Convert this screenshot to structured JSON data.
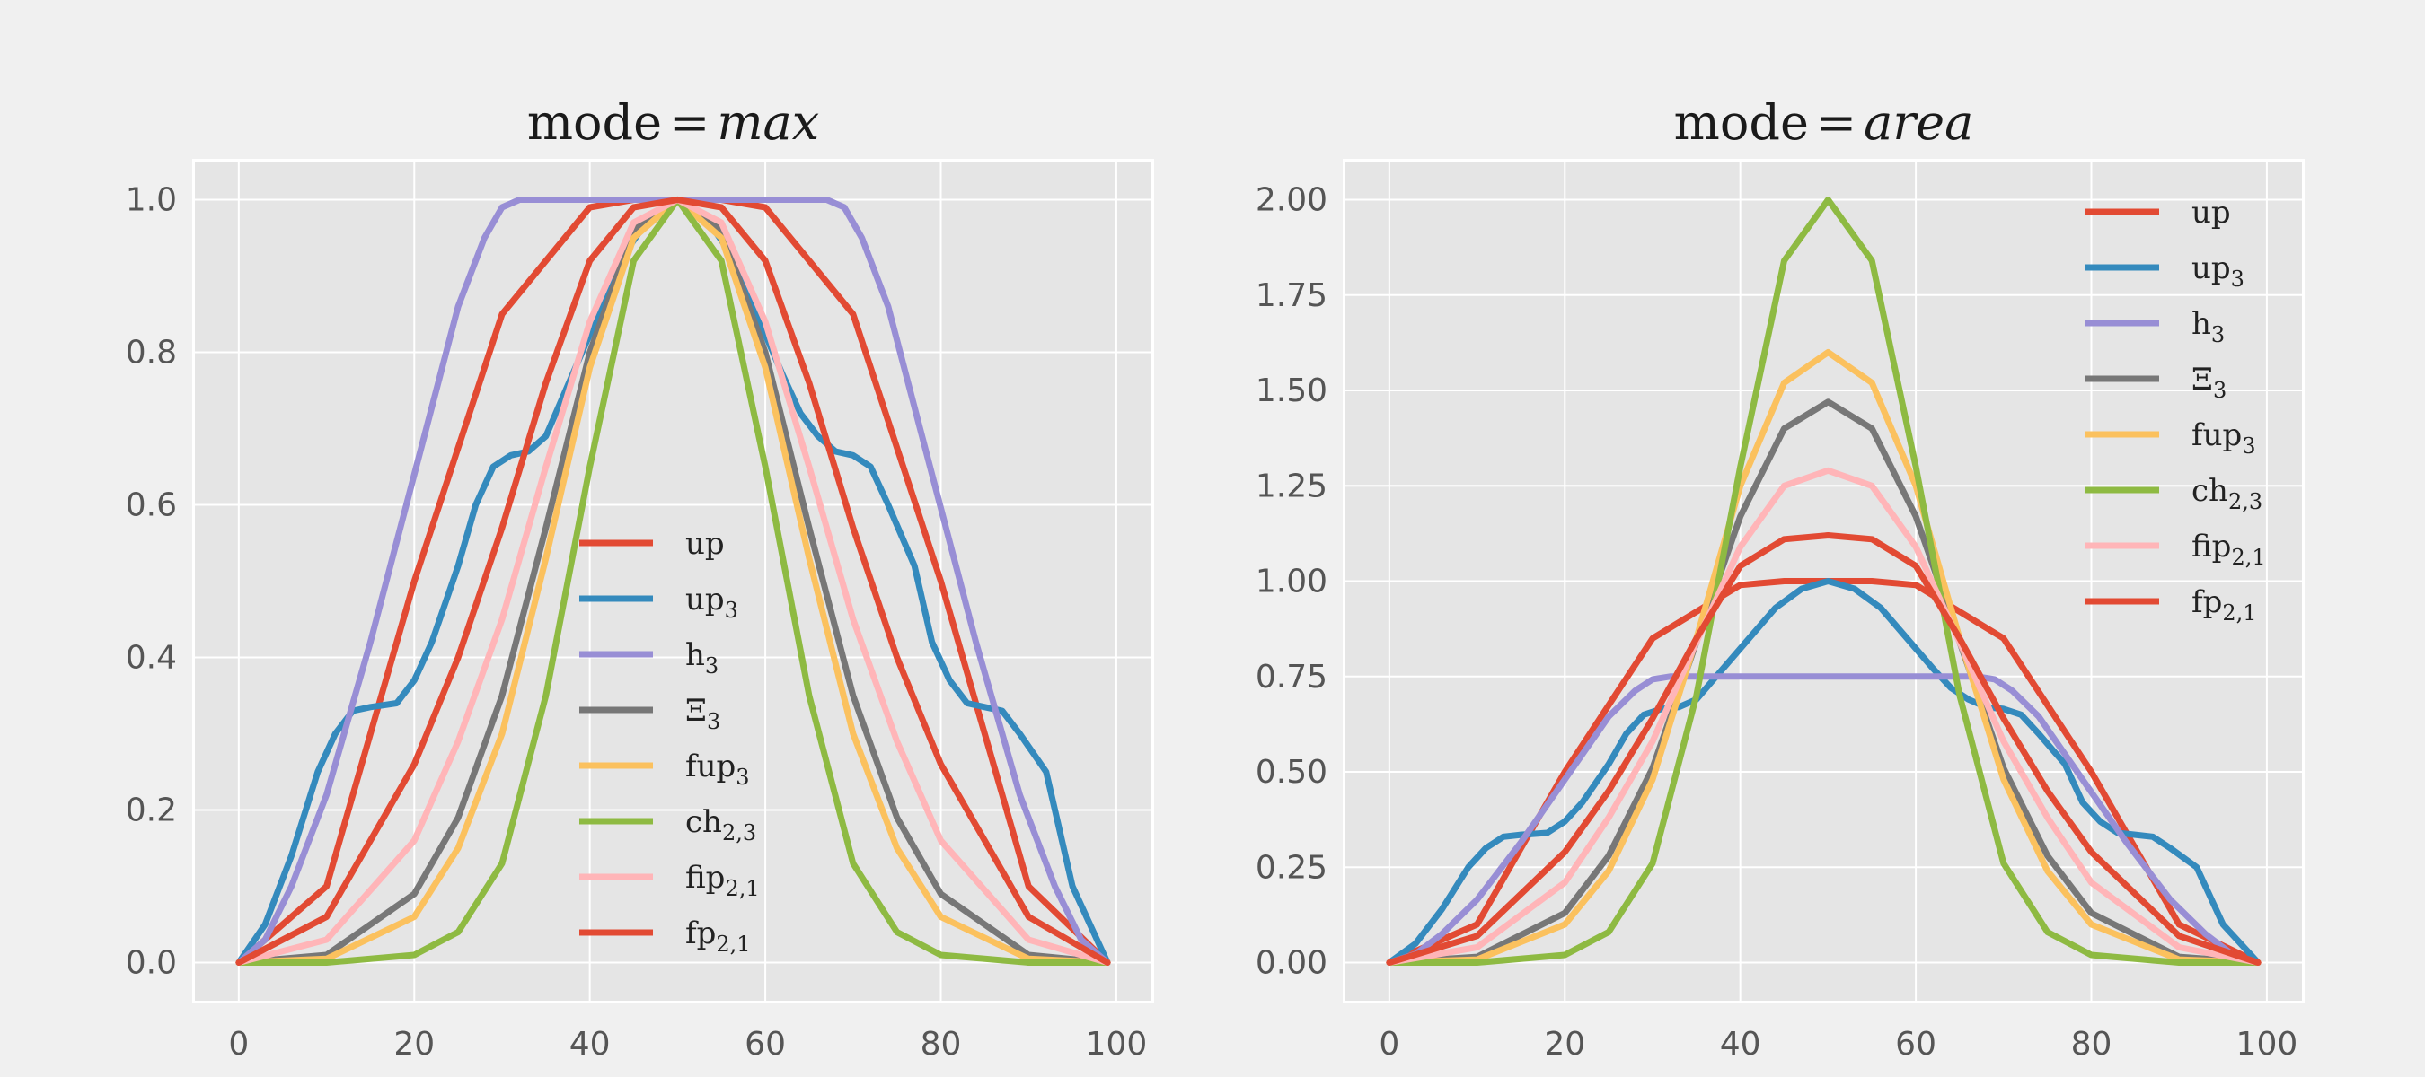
{
  "colors": {
    "up": "#e24a33",
    "up3": "#348abd",
    "h3": "#988ed5",
    "xi3": "#777777",
    "fup3": "#fbc15e",
    "ch23": "#8eba42",
    "fip21": "#ffb5b8",
    "fp21": "#e24a33"
  },
  "chart_data": [
    {
      "type": "line",
      "title": "mode = max",
      "title_main": "mode",
      "title_eq": "=",
      "title_var": "max",
      "xlim": [
        -5,
        104
      ],
      "ylim": [
        -0.05,
        1.05
      ],
      "xticks": [
        0,
        20,
        40,
        60,
        80,
        100
      ],
      "xtick_labels": [
        "0",
        "20",
        "40",
        "60",
        "80",
        "100"
      ],
      "yticks": [
        0.0,
        0.2,
        0.4,
        0.6,
        0.8,
        1.0
      ],
      "ytick_labels": [
        "0.0",
        "0.2",
        "0.4",
        "0.6",
        "0.8",
        "1.0"
      ],
      "grid": true,
      "legend_position": "lower-center",
      "series": [
        {
          "key": "up",
          "name": "up",
          "sub": "",
          "x": [
            0,
            10,
            20,
            30,
            40,
            45,
            50,
            55,
            60,
            70,
            80,
            90,
            99
          ],
          "y": [
            0.0,
            0.1,
            0.5,
            0.85,
            0.99,
            1.0,
            1.0,
            1.0,
            0.99,
            0.85,
            0.5,
            0.1,
            0.0
          ]
        },
        {
          "key": "up3",
          "name": "up",
          "sub": "3",
          "x": [
            0,
            3,
            6,
            9,
            11,
            13,
            15,
            18,
            20,
            22,
            25,
            27,
            29,
            31,
            33,
            35,
            38,
            41,
            44,
            47,
            50,
            53,
            56,
            59,
            62,
            64,
            66,
            68,
            70,
            72,
            74,
            77,
            79,
            81,
            83,
            85,
            87,
            89,
            92,
            95,
            99
          ],
          "y": [
            0.0,
            0.05,
            0.14,
            0.25,
            0.3,
            0.33,
            0.335,
            0.34,
            0.37,
            0.42,
            0.52,
            0.6,
            0.65,
            0.665,
            0.67,
            0.69,
            0.77,
            0.85,
            0.93,
            0.98,
            1.0,
            0.98,
            0.93,
            0.85,
            0.77,
            0.72,
            0.69,
            0.67,
            0.665,
            0.65,
            0.6,
            0.52,
            0.42,
            0.37,
            0.34,
            0.335,
            0.33,
            0.3,
            0.25,
            0.1,
            0.0
          ]
        },
        {
          "key": "h3",
          "name": "h",
          "sub": "3",
          "x": [
            0,
            3,
            6,
            10,
            15,
            20,
            25,
            28,
            30,
            32,
            35,
            50,
            65,
            67,
            69,
            71,
            74,
            79,
            84,
            89,
            93,
            96,
            99
          ],
          "y": [
            0.0,
            0.03,
            0.1,
            0.22,
            0.42,
            0.64,
            0.86,
            0.95,
            0.99,
            1.0,
            1.0,
            1.0,
            1.0,
            1.0,
            0.99,
            0.95,
            0.86,
            0.64,
            0.42,
            0.22,
            0.1,
            0.03,
            0.0
          ]
        },
        {
          "key": "xi3",
          "name": "Ξ",
          "sub": "3",
          "x": [
            0,
            10,
            20,
            25,
            30,
            35,
            40,
            45,
            50,
            55,
            60,
            65,
            70,
            75,
            80,
            90,
            99
          ],
          "y": [
            0.0,
            0.01,
            0.09,
            0.19,
            0.35,
            0.57,
            0.8,
            0.96,
            1.0,
            0.96,
            0.8,
            0.57,
            0.35,
            0.19,
            0.09,
            0.01,
            0.0
          ]
        },
        {
          "key": "fup3",
          "name": "fup",
          "sub": "3",
          "x": [
            0,
            10,
            20,
            25,
            30,
            35,
            40,
            45,
            50,
            55,
            60,
            65,
            70,
            75,
            80,
            90,
            99
          ],
          "y": [
            0.0,
            0.005,
            0.06,
            0.15,
            0.3,
            0.53,
            0.78,
            0.95,
            1.0,
            0.95,
            0.78,
            0.53,
            0.3,
            0.15,
            0.06,
            0.005,
            0.0
          ]
        },
        {
          "key": "ch23",
          "name": "ch",
          "sub": "2,3",
          "x": [
            0,
            10,
            20,
            25,
            30,
            35,
            40,
            45,
            50,
            55,
            60,
            65,
            70,
            75,
            80,
            90,
            99
          ],
          "y": [
            0.0,
            0.0,
            0.01,
            0.04,
            0.13,
            0.35,
            0.65,
            0.92,
            1.0,
            0.92,
            0.65,
            0.35,
            0.13,
            0.04,
            0.01,
            0.0,
            0.0
          ]
        },
        {
          "key": "fip21",
          "name": "fip",
          "sub": "2,1",
          "x": [
            0,
            10,
            20,
            25,
            30,
            35,
            40,
            45,
            50,
            55,
            60,
            65,
            70,
            75,
            80,
            90,
            99
          ],
          "y": [
            0.0,
            0.03,
            0.16,
            0.29,
            0.45,
            0.65,
            0.84,
            0.97,
            1.0,
            0.97,
            0.84,
            0.65,
            0.45,
            0.29,
            0.16,
            0.03,
            0.0
          ]
        },
        {
          "key": "fp21",
          "name": "fp",
          "sub": "2,1",
          "x": [
            0,
            10,
            20,
            25,
            30,
            35,
            40,
            45,
            50,
            55,
            60,
            65,
            70,
            75,
            80,
            90,
            99
          ],
          "y": [
            0.0,
            0.06,
            0.26,
            0.4,
            0.57,
            0.76,
            0.92,
            0.99,
            1.0,
            0.99,
            0.92,
            0.76,
            0.57,
            0.4,
            0.26,
            0.06,
            0.0
          ]
        }
      ]
    },
    {
      "type": "line",
      "title": "mode = area",
      "title_main": "mode",
      "title_eq": "=",
      "title_var": "area",
      "xlim": [
        -5,
        104
      ],
      "ylim": [
        -0.1,
        2.1
      ],
      "xticks": [
        0,
        20,
        40,
        60,
        80,
        100
      ],
      "xtick_labels": [
        "0",
        "20",
        "40",
        "60",
        "80",
        "100"
      ],
      "yticks": [
        0.0,
        0.25,
        0.5,
        0.75,
        1.0,
        1.25,
        1.5,
        1.75,
        2.0
      ],
      "ytick_labels": [
        "0.00",
        "0.25",
        "0.50",
        "0.75",
        "1.00",
        "1.25",
        "1.50",
        "1.75",
        "2.00"
      ],
      "grid": true,
      "legend_position": "upper-right",
      "series": [
        {
          "key": "up",
          "name": "up",
          "sub": "",
          "x": [
            0,
            10,
            20,
            30,
            40,
            45,
            50,
            55,
            60,
            70,
            80,
            90,
            99
          ],
          "y": [
            0.0,
            0.1,
            0.5,
            0.85,
            0.99,
            1.0,
            1.0,
            1.0,
            0.99,
            0.85,
            0.5,
            0.1,
            0.0
          ]
        },
        {
          "key": "up3",
          "name": "up",
          "sub": "3",
          "x": [
            0,
            3,
            6,
            9,
            11,
            13,
            15,
            18,
            20,
            22,
            25,
            27,
            29,
            31,
            33,
            35,
            38,
            41,
            44,
            47,
            50,
            53,
            56,
            59,
            62,
            64,
            66,
            68,
            70,
            72,
            74,
            77,
            79,
            81,
            83,
            85,
            87,
            89,
            92,
            95,
            99
          ],
          "y": [
            0.0,
            0.05,
            0.14,
            0.25,
            0.3,
            0.33,
            0.335,
            0.34,
            0.37,
            0.42,
            0.52,
            0.6,
            0.65,
            0.665,
            0.67,
            0.69,
            0.77,
            0.85,
            0.93,
            0.98,
            1.0,
            0.98,
            0.93,
            0.85,
            0.77,
            0.72,
            0.69,
            0.67,
            0.665,
            0.65,
            0.6,
            0.52,
            0.42,
            0.37,
            0.34,
            0.335,
            0.33,
            0.3,
            0.25,
            0.1,
            0.0
          ]
        },
        {
          "key": "h3",
          "name": "h",
          "sub": "3",
          "x": [
            0,
            3,
            6,
            10,
            15,
            20,
            25,
            28,
            30,
            32,
            35,
            50,
            65,
            67,
            69,
            71,
            74,
            79,
            84,
            89,
            93,
            96,
            99
          ],
          "y": [
            0.0,
            0.0225,
            0.075,
            0.165,
            0.315,
            0.48,
            0.645,
            0.7125,
            0.7425,
            0.75,
            0.75,
            0.75,
            0.75,
            0.75,
            0.7425,
            0.7125,
            0.645,
            0.48,
            0.315,
            0.165,
            0.075,
            0.0225,
            0.0
          ]
        },
        {
          "key": "xi3",
          "name": "Ξ",
          "sub": "3",
          "x": [
            0,
            10,
            20,
            25,
            30,
            35,
            40,
            45,
            50,
            55,
            60,
            65,
            70,
            75,
            80,
            90,
            99
          ],
          "y": [
            0.0,
            0.015,
            0.13,
            0.28,
            0.51,
            0.84,
            1.17,
            1.4,
            1.47,
            1.4,
            1.17,
            0.84,
            0.51,
            0.28,
            0.13,
            0.015,
            0.0
          ]
        },
        {
          "key": "fup3",
          "name": "fup",
          "sub": "3",
          "x": [
            0,
            10,
            20,
            25,
            30,
            35,
            40,
            45,
            50,
            55,
            60,
            65,
            70,
            75,
            80,
            90,
            99
          ],
          "y": [
            0.0,
            0.008,
            0.1,
            0.24,
            0.48,
            0.85,
            1.25,
            1.52,
            1.6,
            1.52,
            1.25,
            0.85,
            0.48,
            0.24,
            0.1,
            0.008,
            0.0
          ]
        },
        {
          "key": "ch23",
          "name": "ch",
          "sub": "2,3",
          "x": [
            0,
            10,
            20,
            25,
            30,
            35,
            40,
            45,
            50,
            55,
            60,
            65,
            70,
            75,
            80,
            90,
            99
          ],
          "y": [
            0.0,
            0.0,
            0.02,
            0.08,
            0.26,
            0.7,
            1.3,
            1.84,
            2.0,
            1.84,
            1.3,
            0.7,
            0.26,
            0.08,
            0.02,
            0.0,
            0.0
          ]
        },
        {
          "key": "fip21",
          "name": "fip",
          "sub": "2,1",
          "x": [
            0,
            10,
            20,
            25,
            30,
            35,
            40,
            45,
            50,
            55,
            60,
            65,
            70,
            75,
            80,
            90,
            99
          ],
          "y": [
            0.0,
            0.04,
            0.21,
            0.38,
            0.58,
            0.84,
            1.09,
            1.25,
            1.29,
            1.25,
            1.09,
            0.84,
            0.58,
            0.38,
            0.21,
            0.04,
            0.0
          ]
        },
        {
          "key": "fp21",
          "name": "fp",
          "sub": "2,1",
          "x": [
            0,
            10,
            20,
            25,
            30,
            35,
            40,
            45,
            50,
            55,
            60,
            65,
            70,
            75,
            80,
            90,
            99
          ],
          "y": [
            0.0,
            0.07,
            0.29,
            0.45,
            0.64,
            0.85,
            1.04,
            1.11,
            1.12,
            1.11,
            1.04,
            0.85,
            0.64,
            0.45,
            0.29,
            0.07,
            0.0
          ]
        }
      ]
    }
  ]
}
